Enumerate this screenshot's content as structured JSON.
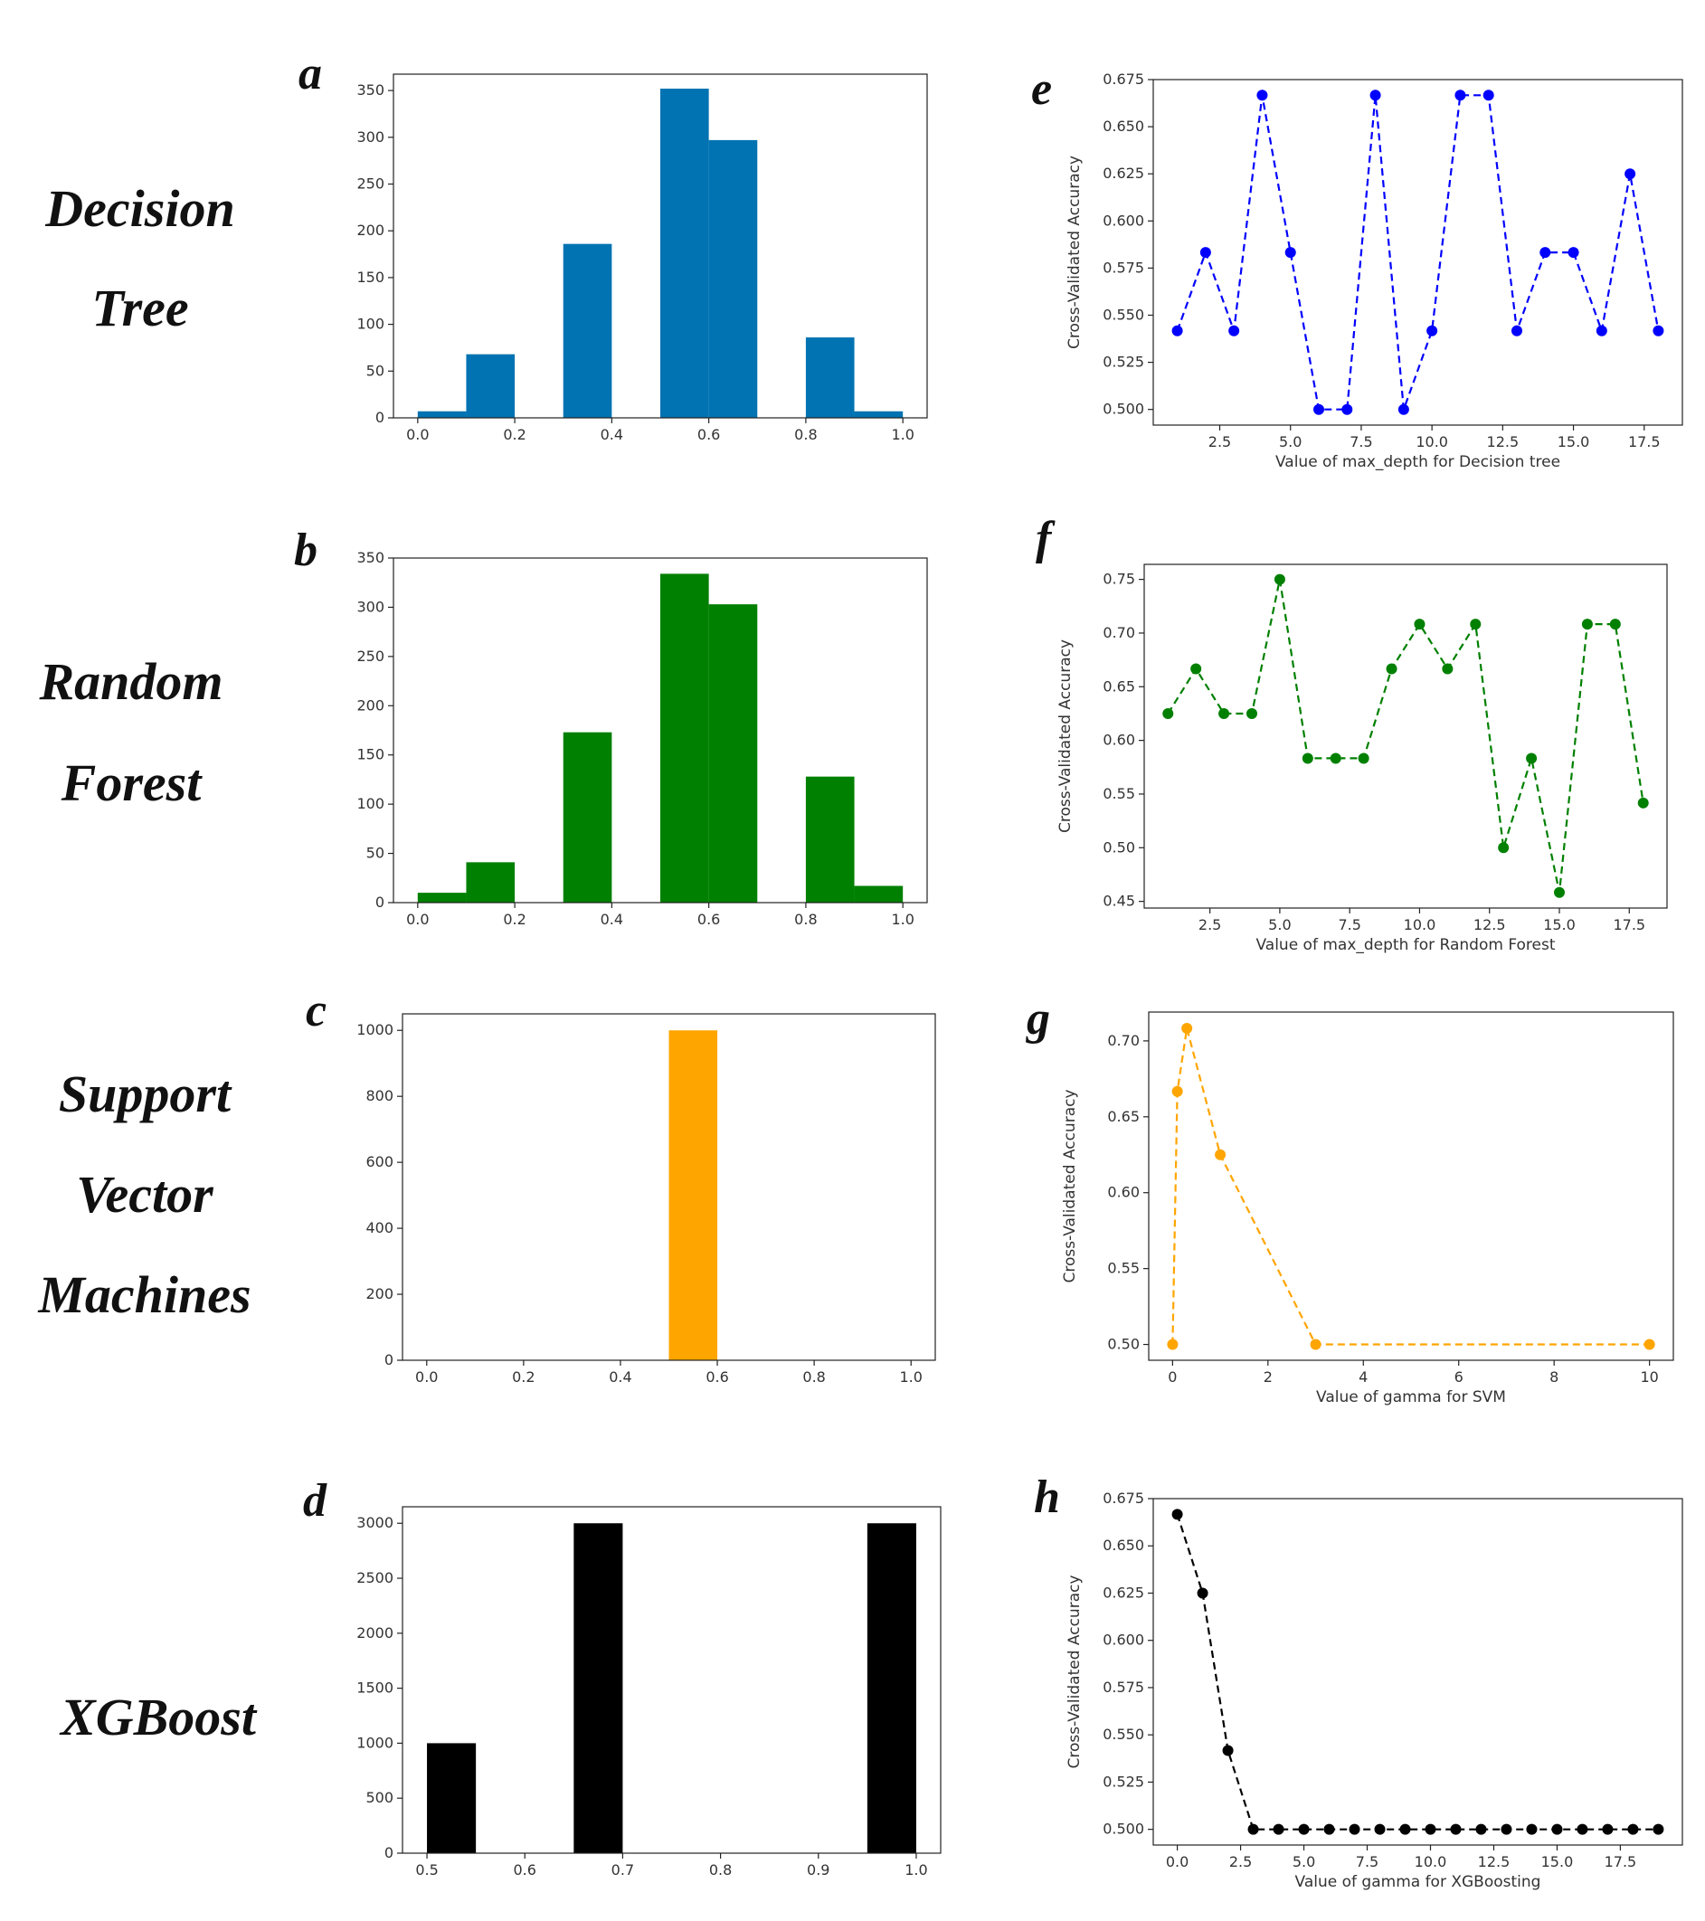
{
  "row_labels": [
    [
      "Decision",
      "Tree"
    ],
    [
      "Random",
      "Forest"
    ],
    [
      "Support",
      "Vector",
      "Machines"
    ],
    [
      "XGBoost"
    ]
  ],
  "chart_data": [
    {
      "id": "a",
      "panel_label": "a",
      "type": "bar",
      "color": "#0173b2",
      "xlim": [
        -0.05,
        1.05
      ],
      "ylim": [
        0,
        367.5
      ],
      "xticks": [
        0.0,
        0.2,
        0.4,
        0.6,
        0.8,
        1.0
      ],
      "xtick_labels": [
        "0.0",
        "0.2",
        "0.4",
        "0.6",
        "0.8",
        "1.0"
      ],
      "yticks": [
        0,
        50,
        100,
        150,
        200,
        250,
        300,
        350
      ],
      "ytick_labels": [
        "0",
        "50",
        "100",
        "150",
        "200",
        "250",
        "300",
        "350"
      ],
      "bins": [
        [
          0.0,
          0.1,
          7
        ],
        [
          0.1,
          0.2,
          68
        ],
        [
          0.3,
          0.4,
          186
        ],
        [
          0.5,
          0.6,
          352
        ],
        [
          0.6,
          0.7,
          297
        ],
        [
          0.8,
          0.9,
          86
        ],
        [
          0.9,
          1.0,
          7
        ]
      ],
      "xlabel": "",
      "ylabel": ""
    },
    {
      "id": "b",
      "panel_label": "b",
      "type": "bar",
      "color": "#008000",
      "xlim": [
        -0.05,
        1.05
      ],
      "ylim": [
        0,
        350
      ],
      "xticks": [
        0.0,
        0.2,
        0.4,
        0.6,
        0.8,
        1.0
      ],
      "xtick_labels": [
        "0.0",
        "0.2",
        "0.4",
        "0.6",
        "0.8",
        "1.0"
      ],
      "yticks": [
        0,
        50,
        100,
        150,
        200,
        250,
        300,
        350
      ],
      "ytick_labels": [
        "0",
        "50",
        "100",
        "150",
        "200",
        "250",
        "300",
        "350"
      ],
      "bins": [
        [
          0.0,
          0.1,
          10
        ],
        [
          0.1,
          0.2,
          41
        ],
        [
          0.3,
          0.4,
          173
        ],
        [
          0.5,
          0.6,
          334
        ],
        [
          0.6,
          0.7,
          303
        ],
        [
          0.8,
          0.9,
          128
        ],
        [
          0.9,
          1.0,
          17
        ]
      ],
      "xlabel": "",
      "ylabel": ""
    },
    {
      "id": "c",
      "panel_label": "c",
      "type": "bar",
      "color": "#ffa500",
      "xlim": [
        -0.05,
        1.05
      ],
      "ylim": [
        0,
        1050
      ],
      "xticks": [
        0.0,
        0.2,
        0.4,
        0.6,
        0.8,
        1.0
      ],
      "xtick_labels": [
        "0.0",
        "0.2",
        "0.4",
        "0.6",
        "0.8",
        "1.0"
      ],
      "yticks": [
        0,
        200,
        400,
        600,
        800,
        1000
      ],
      "ytick_labels": [
        "0",
        "200",
        "400",
        "600",
        "800",
        "1000"
      ],
      "bins": [
        [
          0.5,
          0.6,
          1000
        ]
      ],
      "xlabel": "",
      "ylabel": ""
    },
    {
      "id": "d",
      "panel_label": "d",
      "type": "bar",
      "color": "#000000",
      "xlim": [
        0.475,
        1.025
      ],
      "ylim": [
        0,
        3150
      ],
      "xticks": [
        0.5,
        0.6,
        0.7,
        0.8,
        0.9,
        1.0
      ],
      "xtick_labels": [
        "0.5",
        "0.6",
        "0.7",
        "0.8",
        "0.9",
        "1.0"
      ],
      "yticks": [
        0,
        500,
        1000,
        1500,
        2000,
        2500,
        3000
      ],
      "ytick_labels": [
        "0",
        "500",
        "1000",
        "1500",
        "2000",
        "2500",
        "3000"
      ],
      "bins": [
        [
          0.5,
          0.55,
          1000
        ],
        [
          0.65,
          0.7,
          3000
        ],
        [
          0.95,
          1.0,
          3000
        ]
      ],
      "xlabel": "",
      "ylabel": ""
    },
    {
      "id": "e",
      "panel_label": "e",
      "type": "line",
      "color": "#0000ff",
      "xlim": [
        0.15,
        18.85
      ],
      "ylim": [
        0.4917,
        0.675
      ],
      "xticks": [
        2.5,
        5.0,
        7.5,
        10.0,
        12.5,
        15.0,
        17.5
      ],
      "xtick_labels": [
        "2.5",
        "5.0",
        "7.5",
        "10.0",
        "12.5",
        "15.0",
        "17.5"
      ],
      "yticks": [
        0.5,
        0.525,
        0.55,
        0.575,
        0.6,
        0.625,
        0.65,
        0.675
      ],
      "ytick_labels": [
        "0.500",
        "0.525",
        "0.550",
        "0.575",
        "0.600",
        "0.625",
        "0.650",
        "0.675"
      ],
      "x": [
        1,
        2,
        3,
        4,
        5,
        6,
        7,
        8,
        9,
        10,
        11,
        12,
        13,
        14,
        15,
        16,
        17,
        18
      ],
      "y": [
        0.5417,
        0.5833,
        0.5417,
        0.6667,
        0.5833,
        0.5,
        0.5,
        0.6667,
        0.5,
        0.5417,
        0.6667,
        0.6667,
        0.5417,
        0.5833,
        0.5833,
        0.5417,
        0.625,
        0.5417
      ],
      "xlabel": "Value of max_depth for Decision tree",
      "ylabel": "Cross-Validated Accuracy"
    },
    {
      "id": "f",
      "panel_label": "f",
      "type": "line",
      "color": "#008000",
      "xlim": [
        0.15,
        18.85
      ],
      "ylim": [
        0.4438,
        0.764
      ],
      "xticks": [
        2.5,
        5.0,
        7.5,
        10.0,
        12.5,
        15.0,
        17.5
      ],
      "xtick_labels": [
        "2.5",
        "5.0",
        "7.5",
        "10.0",
        "12.5",
        "15.0",
        "17.5"
      ],
      "yticks": [
        0.45,
        0.5,
        0.55,
        0.6,
        0.65,
        0.7,
        0.75
      ],
      "ytick_labels": [
        "0.45",
        "0.50",
        "0.55",
        "0.60",
        "0.65",
        "0.70",
        "0.75"
      ],
      "x": [
        1,
        2,
        3,
        4,
        5,
        6,
        7,
        8,
        9,
        10,
        11,
        12,
        13,
        14,
        15,
        16,
        17,
        18
      ],
      "y": [
        0.625,
        0.6667,
        0.625,
        0.625,
        0.75,
        0.5833,
        0.5833,
        0.5833,
        0.6667,
        0.7083,
        0.6667,
        0.7083,
        0.5,
        0.5833,
        0.4583,
        0.7083,
        0.7083,
        0.5417
      ],
      "xlabel": "Value of max_depth for Random Forest",
      "ylabel": "Cross-Validated Accuracy"
    },
    {
      "id": "g",
      "panel_label": "g",
      "type": "line",
      "color": "#ffa500",
      "xlim": [
        -0.5,
        10.5
      ],
      "ylim": [
        0.4896,
        0.719
      ],
      "xticks": [
        0,
        2,
        4,
        6,
        8,
        10
      ],
      "xtick_labels": [
        "0",
        "2",
        "4",
        "6",
        "8",
        "10"
      ],
      "yticks": [
        0.5,
        0.55,
        0.6,
        0.65,
        0.7
      ],
      "ytick_labels": [
        "0.50",
        "0.55",
        "0.60",
        "0.65",
        "0.70"
      ],
      "x": [
        0.001,
        0.1,
        0.3,
        1,
        3,
        10
      ],
      "y": [
        0.5,
        0.6667,
        0.7083,
        0.625,
        0.5,
        0.5
      ],
      "xlabel": "Value of gamma for SVM",
      "ylabel": "Cross-Validated Accuracy"
    },
    {
      "id": "h",
      "panel_label": "h",
      "type": "line",
      "color": "#000000",
      "xlim": [
        -0.95,
        19.95
      ],
      "ylim": [
        0.4917,
        0.675
      ],
      "xticks": [
        0.0,
        2.5,
        5.0,
        7.5,
        10.0,
        12.5,
        15.0,
        17.5
      ],
      "xtick_labels": [
        "0.0",
        "2.5",
        "5.0",
        "7.5",
        "10.0",
        "12.5",
        "15.0",
        "17.5"
      ],
      "yticks": [
        0.5,
        0.525,
        0.55,
        0.575,
        0.6,
        0.625,
        0.65,
        0.675
      ],
      "ytick_labels": [
        "0.500",
        "0.525",
        "0.550",
        "0.575",
        "0.600",
        "0.625",
        "0.650",
        "0.675"
      ],
      "x": [
        0,
        1,
        2,
        3,
        4,
        5,
        6,
        7,
        8,
        9,
        10,
        11,
        12,
        13,
        14,
        15,
        16,
        17,
        18,
        19
      ],
      "y": [
        0.6667,
        0.625,
        0.5417,
        0.5,
        0.5,
        0.5,
        0.5,
        0.5,
        0.5,
        0.5,
        0.5,
        0.5,
        0.5,
        0.5,
        0.5,
        0.5,
        0.5,
        0.5,
        0.5,
        0.5
      ],
      "xlabel": "Value of gamma for XGBoosting",
      "ylabel": "Cross-Validated Accuracy"
    }
  ]
}
